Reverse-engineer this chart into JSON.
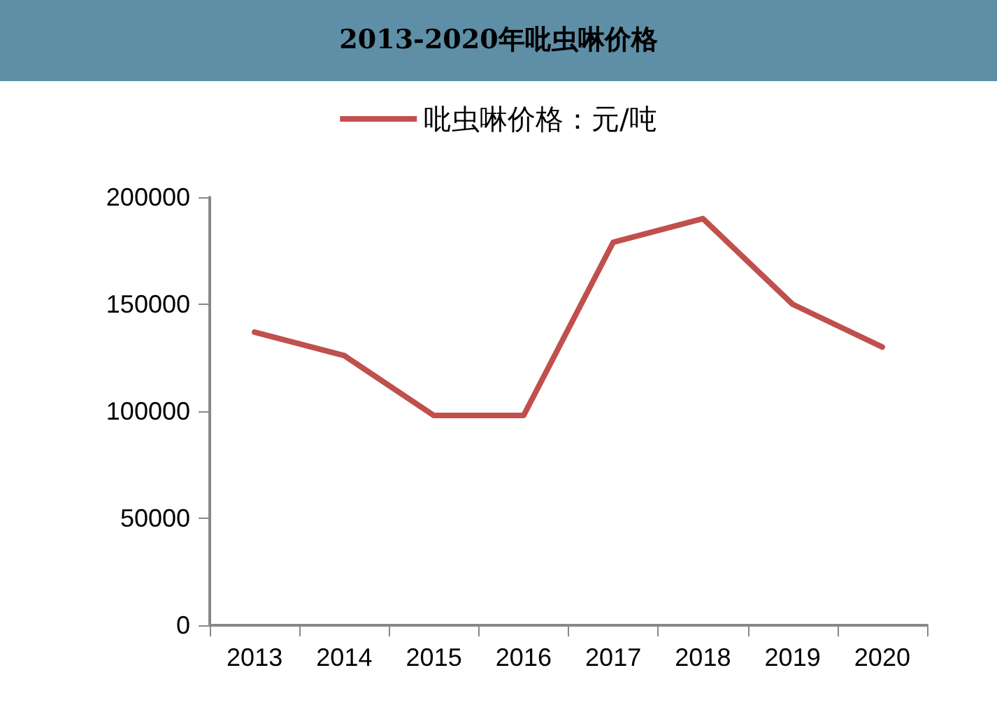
{
  "chart_data": {
    "type": "line",
    "title": "2013-2020年吡虫啉价格",
    "categories": [
      "2013",
      "2014",
      "2015",
      "2016",
      "2017",
      "2018",
      "2019",
      "2020"
    ],
    "series": [
      {
        "name": "吡虫啉价格：元/吨",
        "color": "#c0504d",
        "values": [
          137000,
          126000,
          98000,
          98000,
          179000,
          190000,
          150000,
          130000
        ]
      }
    ],
    "ylim": [
      0,
      200000
    ],
    "yticks": [
      0,
      50000,
      100000,
      150000,
      200000
    ],
    "grid": false,
    "legend": "top",
    "marker": "none"
  }
}
